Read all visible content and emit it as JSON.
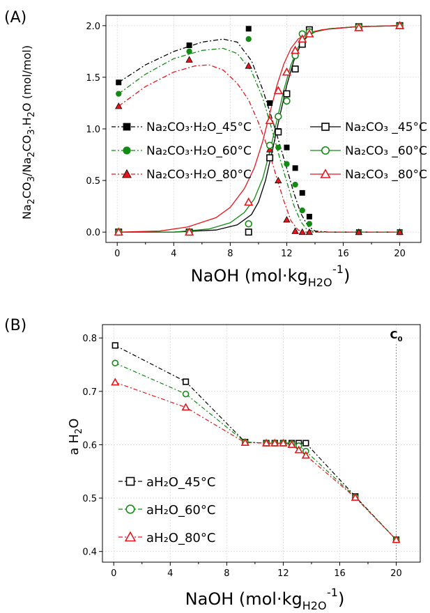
{
  "chart_data": [
    {
      "panel": "(A)",
      "type": "line",
      "xlabel": "NaOH (mol·kg",
      "xlabel_sub": "H2O",
      "xlabel_sup": "-1",
      "xlabel_end": ")",
      "ylabel_parts": [
        "Na",
        "2",
        "CO",
        "3",
        "/Na",
        "2",
        "CO",
        "3",
        ".H",
        "2",
        "O (mol/mol)"
      ],
      "xlim": [
        -0.8,
        21.5
      ],
      "ylim": [
        -0.1,
        2.1
      ],
      "xticks": [
        0,
        4,
        8,
        12,
        16,
        20
      ],
      "yticks": [
        0.0,
        0.5,
        1.0,
        1.5,
        2.0
      ],
      "grid": true,
      "series": [
        {
          "name": "Na₂CO₃·H₂O_45°C",
          "color": "#000000",
          "marker": "square-filled",
          "dash": "dashdot",
          "x": [
            0.1,
            5.1,
            9.3,
            10.8,
            11.4,
            12.0,
            12.6,
            13.1,
            13.6,
            17.1,
            20.0
          ],
          "y": [
            1.45,
            1.81,
            1.97,
            1.25,
            0.98,
            0.82,
            0.62,
            0.38,
            0.15,
            0.0,
            0.0
          ]
        },
        {
          "name": "Na₂CO₃·H₂O_60°C",
          "color": "#138a13",
          "marker": "circle-filled",
          "dash": "dashdot",
          "x": [
            0.1,
            5.1,
            9.3,
            10.8,
            11.4,
            12.0,
            12.6,
            13.1,
            13.6,
            17.1,
            20.0
          ],
          "y": [
            1.34,
            1.75,
            1.87,
            0.84,
            0.82,
            0.66,
            0.46,
            0.21,
            0.08,
            0.0,
            0.0
          ]
        },
        {
          "name": "Na₂CO₃·H₂O_80°C",
          "color": "#e8141b",
          "marker": "triangle-filled",
          "dash": "dashdot",
          "x": [
            0.1,
            5.1,
            9.3,
            10.8,
            11.4,
            12.0,
            12.6,
            13.1,
            13.6,
            17.1,
            20.0
          ],
          "y": [
            1.22,
            1.67,
            1.61,
            0.8,
            0.5,
            0.12,
            0.01,
            0.0,
            0.0,
            0.0,
            0.0
          ]
        },
        {
          "name": "Na₂CO₃ _45°C",
          "color": "#000000",
          "marker": "square-open",
          "dash": "solid",
          "x": [
            0.1,
            5.1,
            9.3,
            10.8,
            11.4,
            12.0,
            12.6,
            13.1,
            13.6,
            17.1,
            20.0
          ],
          "y": [
            0.0,
            0.0,
            0.0,
            0.72,
            0.97,
            1.34,
            1.58,
            1.82,
            1.96,
            1.99,
            2.0
          ]
        },
        {
          "name": "Na₂CO₃ _60°C",
          "color": "#138a13",
          "marker": "circle-open",
          "dash": "solid",
          "x": [
            0.1,
            5.1,
            9.3,
            10.8,
            11.4,
            12.0,
            12.6,
            13.1,
            13.6,
            17.1,
            20.0
          ],
          "y": [
            0.0,
            0.0,
            0.08,
            0.84,
            1.12,
            1.27,
            1.71,
            1.92,
            1.94,
            1.99,
            2.0
          ]
        },
        {
          "name": "Na₂CO₃ _80°C",
          "color": "#e8141b",
          "marker": "triangle-open",
          "dash": "solid",
          "x": [
            0.1,
            5.1,
            9.3,
            10.8,
            11.4,
            12.0,
            12.6,
            13.1,
            13.6,
            17.1,
            20.0
          ],
          "y": [
            0.0,
            0.0,
            0.29,
            1.08,
            1.37,
            1.55,
            1.76,
            1.87,
            1.92,
            1.98,
            2.0
          ]
        }
      ],
      "fits": [
        {
          "kind": "hydrate",
          "color": "#000000",
          "x": [
            0.1,
            2,
            4,
            6,
            7.5,
            8.5,
            9.5,
            10.3,
            11,
            11.5,
            12,
            12.5,
            13,
            13.5,
            14,
            15,
            17,
            20
          ],
          "y": [
            1.45,
            1.62,
            1.75,
            1.84,
            1.87,
            1.84,
            1.66,
            1.38,
            1.08,
            0.85,
            0.62,
            0.38,
            0.18,
            0.06,
            0.01,
            0.0,
            0.0,
            0.0
          ]
        },
        {
          "kind": "hydrate",
          "color": "#138a13",
          "x": [
            0.1,
            2,
            4,
            6,
            7.5,
            8.5,
            9.5,
            10.3,
            11,
            11.5,
            12,
            12.5,
            13,
            13.4,
            14,
            15,
            17,
            20
          ],
          "y": [
            1.34,
            1.53,
            1.68,
            1.76,
            1.78,
            1.73,
            1.56,
            1.3,
            0.97,
            0.72,
            0.49,
            0.26,
            0.1,
            0.03,
            0.0,
            0.0,
            0.0,
            0.0
          ]
        },
        {
          "kind": "hydrate",
          "color": "#e8141b",
          "x": [
            0.1,
            2,
            4,
            5.5,
            6.5,
            7.5,
            8.5,
            9.3,
            10,
            10.7,
            11.3,
            11.8,
            12.3,
            12.8,
            13.3,
            14,
            17,
            20
          ],
          "y": [
            1.22,
            1.41,
            1.55,
            1.61,
            1.62,
            1.57,
            1.44,
            1.28,
            1.06,
            0.8,
            0.52,
            0.3,
            0.11,
            0.02,
            0.0,
            0.0,
            0.0,
            0.0
          ]
        },
        {
          "kind": "anhydrous",
          "color": "#000000",
          "x": [
            0.1,
            4,
            7,
            8.5,
            9.5,
            10,
            10.5,
            11,
            11.5,
            12,
            12.5,
            13,
            13.5,
            14,
            15,
            17,
            20
          ],
          "y": [
            0.0,
            0.0,
            0.02,
            0.07,
            0.17,
            0.29,
            0.5,
            0.8,
            1.12,
            1.42,
            1.66,
            1.82,
            1.9,
            1.94,
            1.97,
            1.99,
            2.0
          ]
        },
        {
          "kind": "anhydrous",
          "color": "#138a13",
          "x": [
            0.1,
            4,
            6.5,
            8,
            9,
            9.7,
            10.3,
            10.8,
            11.3,
            11.8,
            12.3,
            12.8,
            13.3,
            14,
            15,
            17,
            20
          ],
          "y": [
            0.0,
            0.0,
            0.03,
            0.09,
            0.19,
            0.32,
            0.52,
            0.78,
            1.08,
            1.38,
            1.62,
            1.79,
            1.88,
            1.94,
            1.97,
            1.99,
            2.0
          ]
        },
        {
          "kind": "anhydrous",
          "color": "#e8141b",
          "x": [
            0.1,
            3,
            5,
            7,
            8,
            9,
            9.7,
            10.3,
            10.8,
            11.3,
            11.8,
            12.3,
            12.8,
            13.5,
            14.5,
            17,
            20
          ],
          "y": [
            0.0,
            0.01,
            0.05,
            0.14,
            0.24,
            0.42,
            0.62,
            0.88,
            1.15,
            1.42,
            1.63,
            1.78,
            1.87,
            1.93,
            1.96,
            1.99,
            2.0
          ]
        }
      ]
    },
    {
      "panel": "(B)",
      "type": "line",
      "xlabel": "NaOH (mol·kg",
      "xlabel_sub": "H2O",
      "xlabel_sup": "-1",
      "xlabel_end": ")",
      "ylabel_parts": [
        "a H",
        "2",
        "O"
      ],
      "xlim": [
        -0.8,
        21.7
      ],
      "ylim": [
        0.38,
        0.825
      ],
      "xticks": [
        0,
        4,
        8,
        12,
        16,
        20
      ],
      "yticks": [
        0.4,
        0.5,
        0.6,
        0.7,
        0.8
      ],
      "grid": true,
      "annotation": {
        "text": "C",
        "sub": "0",
        "x": 20.0
      },
      "series": [
        {
          "name": "aH₂O_45°C",
          "color": "#000000",
          "marker": "square-open",
          "x": [
            0.1,
            5.1,
            9.3,
            10.8,
            11.4,
            12.0,
            12.6,
            13.1,
            13.6,
            17.1,
            20.0
          ],
          "y": [
            0.786,
            0.718,
            0.605,
            0.603,
            0.603,
            0.603,
            0.603,
            0.603,
            0.603,
            0.503,
            0.422
          ]
        },
        {
          "name": "aH₂O_60°C",
          "color": "#138a13",
          "marker": "circle-open",
          "x": [
            0.1,
            5.1,
            9.3,
            10.8,
            11.4,
            12.0,
            12.6,
            13.1,
            13.6,
            17.1,
            20.0
          ],
          "y": [
            0.753,
            0.695,
            0.605,
            0.603,
            0.603,
            0.603,
            0.602,
            0.598,
            0.588,
            0.502,
            0.422
          ]
        },
        {
          "name": "aH₂O_80°C",
          "color": "#e8141b",
          "marker": "triangle-open",
          "x": [
            0.1,
            5.1,
            9.3,
            10.8,
            11.4,
            12.0,
            12.6,
            13.1,
            13.6,
            17.1,
            20.0
          ],
          "y": [
            0.717,
            0.67,
            0.604,
            0.603,
            0.603,
            0.603,
            0.6,
            0.59,
            0.58,
            0.501,
            0.422
          ]
        }
      ]
    }
  ]
}
